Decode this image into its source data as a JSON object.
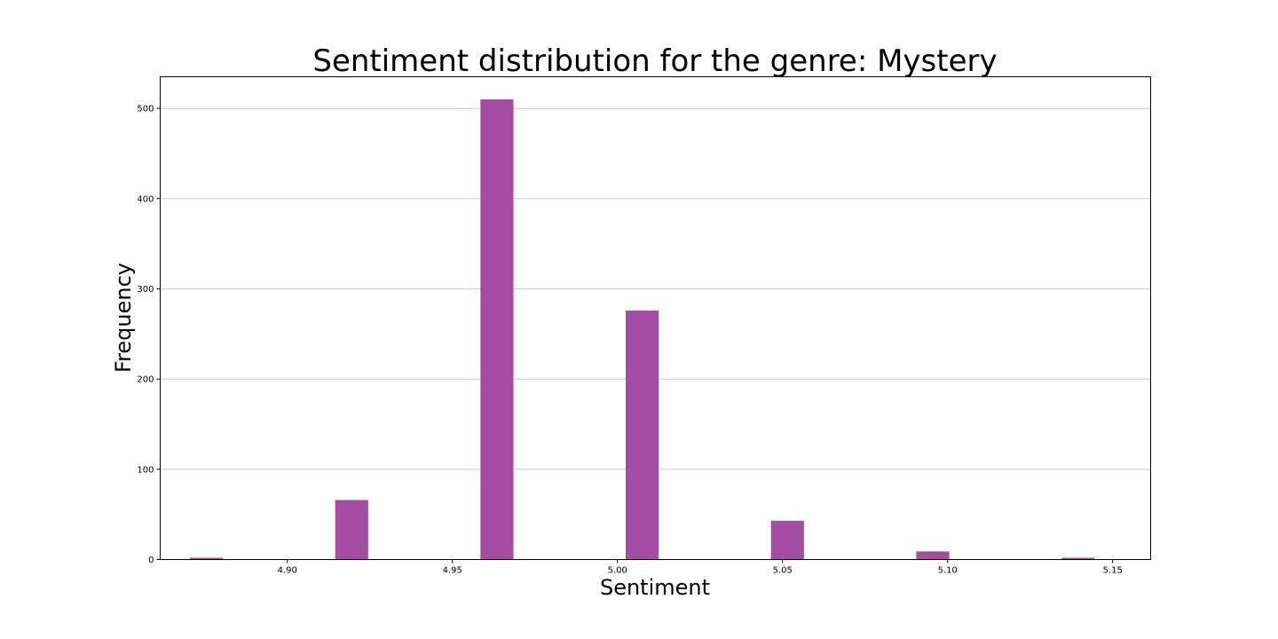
{
  "chart_data": {
    "type": "bar",
    "title": "Sentiment distribution for the genre: Mystery",
    "xlabel": "Sentiment",
    "ylabel": "Frequency",
    "bar_color": "#a54ca6",
    "grid": "y",
    "xlim": [
      4.8615,
      5.1615
    ],
    "ylim": [
      0,
      535
    ],
    "xticks": [
      4.9,
      4.95,
      5.0,
      5.05,
      5.1,
      5.15
    ],
    "xtick_labels": [
      "4.90",
      "4.95",
      "5.00",
      "5.05",
      "5.10",
      "5.15"
    ],
    "yticks": [
      0,
      100,
      200,
      300,
      400,
      500
    ],
    "ytick_labels": [
      "0",
      "100",
      "200",
      "300",
      "400",
      "500"
    ],
    "bars": [
      {
        "x": 4.8755,
        "value": 2
      },
      {
        "x": 4.9195,
        "value": 66
      },
      {
        "x": 4.9635,
        "value": 510
      },
      {
        "x": 5.0075,
        "value": 276
      },
      {
        "x": 5.0515,
        "value": 43
      },
      {
        "x": 5.0955,
        "value": 9
      },
      {
        "x": 5.1395,
        "value": 2
      }
    ],
    "bar_width": 0.01
  }
}
